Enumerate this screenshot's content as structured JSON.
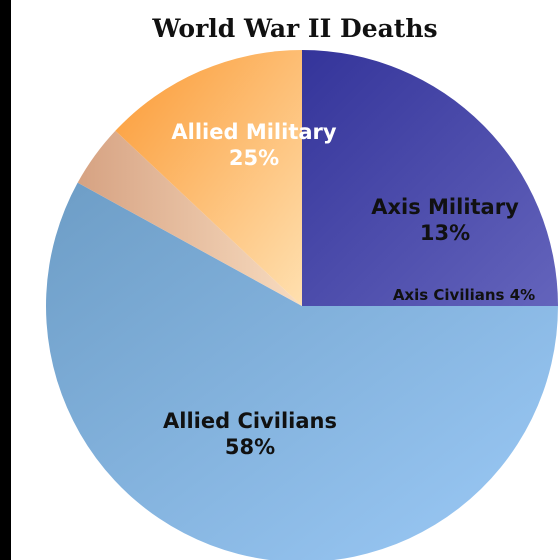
{
  "chart_data": {
    "type": "pie",
    "title": "World War II Deaths",
    "slices": [
      {
        "label": "Allied Civilians",
        "percent_label": "58%",
        "value": 58,
        "color": "#8fbfee"
      },
      {
        "label": "Axis Civilians",
        "percent_label": "4%",
        "value": 4,
        "color": "#f0c9a6"
      },
      {
        "label": "Axis Military",
        "percent_label": "13%",
        "value": 13,
        "color": "#fdbd6c"
      },
      {
        "label": "Allied Military",
        "percent_label": "25%",
        "value": 25,
        "color": "#4f4fae"
      }
    ],
    "label_colors": {
      "Allied Civilians": "#111111",
      "Axis Civilians": "#111111",
      "Axis Military": "#111111",
      "Allied Military": "#ffffff"
    }
  }
}
